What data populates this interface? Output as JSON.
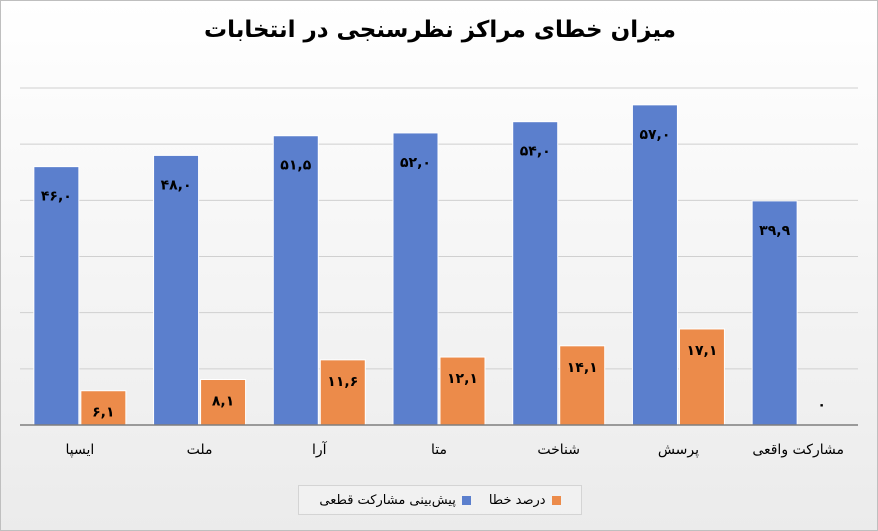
{
  "colors": {
    "series1": "#5b7fcd",
    "series2": "#ec8b4a",
    "grid": "#d0d0d0",
    "axis": "#7f7f7f"
  },
  "chart_data": {
    "type": "bar",
    "title": "میزان خطای مراکز نظرسنجی در انتخابات",
    "categories": [
      "ایسپا",
      "ملت",
      "آرا",
      "متا",
      "شناخت",
      "پرسش",
      "مشارکت واقعی"
    ],
    "series": [
      {
        "name": "پیش‌بینی مشارکت قطعی",
        "values": [
          46.0,
          48.0,
          51.5,
          52.0,
          54.0,
          57.0,
          39.9
        ],
        "labels": [
          "۴۶,۰",
          "۴۸,۰",
          "۵۱,۵",
          "۵۲,۰",
          "۵۴,۰",
          "۵۷,۰",
          "۳۹,۹"
        ]
      },
      {
        "name": "درصد خطا",
        "values": [
          6.1,
          8.1,
          11.6,
          12.1,
          14.1,
          17.1,
          0
        ],
        "labels": [
          "۶,۱",
          "۸,۱",
          "۱۱,۶",
          "۱۲,۱",
          "۱۴,۱",
          "۱۷,۱",
          "۰"
        ]
      }
    ],
    "ylim": [
      0,
      60
    ],
    "grid": true,
    "legend": "bottom"
  }
}
